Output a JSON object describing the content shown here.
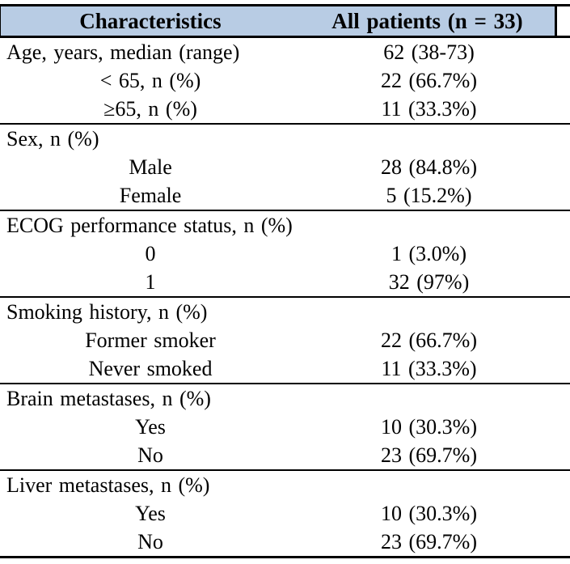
{
  "colors": {
    "header_background": "#b8cce4",
    "rule": "#000000",
    "text": "#000000"
  },
  "table": {
    "headers": [
      "Characteristics",
      "All patients (n = 33)"
    ],
    "sections": [
      {
        "label": "Age, years, median (range)",
        "value": "62 (38-73)",
        "rows": [
          {
            "label": "< 65, n (%)",
            "value": "22 (66.7%)"
          },
          {
            "label": "≥65, n (%)",
            "value": "11 (33.3%)"
          }
        ]
      },
      {
        "label": "Sex, n (%)",
        "value": "",
        "rows": [
          {
            "label": "Male",
            "value": "28 (84.8%)"
          },
          {
            "label": "Female",
            "value": "5 (15.2%)"
          }
        ]
      },
      {
        "label": "ECOG performance status, n (%)",
        "value": "",
        "rows": [
          {
            "label": "0",
            "value": "1 (3.0%)"
          },
          {
            "label": "1",
            "value": "32 (97%)"
          }
        ]
      },
      {
        "label": "Smoking history, n (%)",
        "value": "",
        "rows": [
          {
            "label": "Former smoker",
            "value": "22 (66.7%)"
          },
          {
            "label": "Never smoked",
            "value": "11 (33.3%)"
          }
        ]
      },
      {
        "label": "Brain metastases, n (%)",
        "value": "",
        "rows": [
          {
            "label": "Yes",
            "value": "10 (30.3%)"
          },
          {
            "label": "No",
            "value": "23 (69.7%)"
          }
        ]
      },
      {
        "label": "Liver metastases, n (%)",
        "value": "",
        "rows": [
          {
            "label": "Yes",
            "value": "10 (30.3%)"
          },
          {
            "label": "No",
            "value": "23 (69.7%)"
          }
        ]
      }
    ]
  }
}
